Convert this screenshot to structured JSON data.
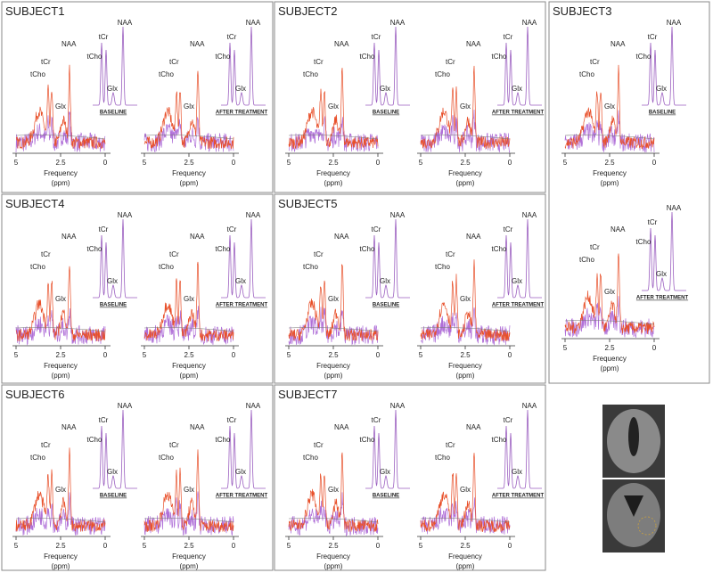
{
  "panels": [
    {
      "title": "SUBJECT1",
      "spectra": [
        {
          "plot_peaks": [
            "tCho",
            "tCr",
            "NAA",
            "Glx"
          ],
          "inset_peaks": [
            "tCr",
            "tCho",
            "NAA",
            "Glx"
          ],
          "inset_label": "BASELINE",
          "xticks": [
            5,
            2.5,
            0
          ],
          "xlabel": "Frequency",
          "xunit": "(ppm)"
        },
        {
          "plot_peaks": [
            "tCho",
            "tCr",
            "NAA",
            "Glx"
          ],
          "inset_peaks": [
            "tCr",
            "tCho",
            "NAA",
            "Glx"
          ],
          "inset_label": "AFTER TREATMENT",
          "xticks": [
            5,
            2.5,
            0
          ],
          "xlabel": "Frequency",
          "xunit": "(ppm)"
        }
      ]
    },
    {
      "title": "SUBJECT2",
      "spectra": [
        {
          "plot_peaks": [
            "tCho",
            "tCr",
            "NAA",
            "Glx"
          ],
          "inset_peaks": [
            "tCr",
            "tCho",
            "NAA",
            "Glx"
          ],
          "inset_label": "BASELINE",
          "xticks": [
            5,
            2.5,
            0
          ],
          "xlabel": "Frequency",
          "xunit": "(ppm)"
        },
        {
          "plot_peaks": [
            "tCho",
            "tCr",
            "NAA",
            "Glx"
          ],
          "inset_peaks": [
            "tCr",
            "tCho",
            "NAA",
            "Glx"
          ],
          "inset_label": "AFTER TREATMENT",
          "xticks": [
            5,
            2.5,
            0
          ],
          "xlabel": "Frequency",
          "xunit": "(ppm)"
        }
      ]
    },
    {
      "title": "SUBJECT3",
      "spectra": [
        {
          "plot_peaks": [
            "tCho",
            "tCr",
            "NAA",
            "Glx"
          ],
          "inset_peaks": [
            "tCr",
            "tCho",
            "NAA",
            "Glx"
          ],
          "inset_label": "BASELINE",
          "xticks": [
            5,
            2.5,
            0
          ],
          "xlabel": "Frequency",
          "xunit": "(ppm)"
        },
        {
          "plot_peaks": [
            "tCho",
            "tCr",
            "NAA",
            "Glx"
          ],
          "inset_peaks": [
            "tCr",
            "tCho",
            "NAA",
            "Glx"
          ],
          "inset_label": "AFTER TREATMENT",
          "xticks": [
            5,
            2.5,
            0
          ],
          "xlabel": "Frequency",
          "xunit": "(ppm)"
        }
      ]
    },
    {
      "title": "SUBJECT4",
      "spectra": [
        {
          "plot_peaks": [
            "tCho",
            "tCr",
            "NAA",
            "Glx"
          ],
          "inset_peaks": [
            "tCr",
            "tCho",
            "NAA",
            "Glx"
          ],
          "inset_label": "BASELINE",
          "xticks": [
            5,
            2.5,
            0
          ],
          "xlabel": "Frequency",
          "xunit": "(ppm)"
        },
        {
          "plot_peaks": [
            "tCho",
            "tCr",
            "NAA",
            "Glx"
          ],
          "inset_peaks": [
            "tCr",
            "tCho",
            "NAA",
            "Glx"
          ],
          "inset_label": "AFTER TREATMENT",
          "xticks": [
            5,
            2.5,
            0
          ],
          "xlabel": "Frequency",
          "xunit": "(ppm)"
        }
      ]
    },
    {
      "title": "SUBJECT5",
      "spectra": [
        {
          "plot_peaks": [
            "tCho",
            "tCr",
            "NAA",
            "Glx"
          ],
          "inset_peaks": [
            "tCr",
            "tCho",
            "NAA",
            "Glx"
          ],
          "inset_label": "BASELINE",
          "xticks": [
            5,
            2.5,
            0
          ],
          "xlabel": "Frequency",
          "xunit": "(ppm)"
        },
        {
          "plot_peaks": [
            "tCho",
            "tCr",
            "NAA",
            "Glx"
          ],
          "inset_peaks": [
            "tCr",
            "tCho",
            "NAA",
            "Glx"
          ],
          "inset_label": "AFTER TREATMENT",
          "xticks": [
            5,
            2.5,
            0
          ],
          "xlabel": "Frequency",
          "xunit": "(ppm)"
        }
      ]
    },
    {
      "title": "SUBJECT6",
      "spectra": [
        {
          "plot_peaks": [
            "tCho",
            "tCr",
            "NAA",
            "Glx"
          ],
          "inset_peaks": [
            "tCr",
            "tCho",
            "NAA",
            "Glx"
          ],
          "inset_label": "BASELINE",
          "xticks": [
            5,
            2.5,
            0
          ],
          "xlabel": "Frequency",
          "xunit": "(ppm)"
        },
        {
          "plot_peaks": [
            "tCho",
            "tCr",
            "NAA",
            "Glx"
          ],
          "inset_peaks": [
            "tCr",
            "tCho",
            "NAA",
            "Glx"
          ],
          "inset_label": "AFTER TREATMENT",
          "xticks": [
            5,
            2.5,
            0
          ],
          "xlabel": "Frequency",
          "xunit": "(ppm)"
        }
      ]
    },
    {
      "title": "SUBJECT7",
      "spectra": [
        {
          "plot_peaks": [
            "tCho",
            "tCr",
            "NAA",
            "Glx"
          ],
          "inset_peaks": [
            "tCr",
            "tCho",
            "NAA",
            "Glx"
          ],
          "inset_label": "BASELINE",
          "xticks": [
            5,
            2.5,
            0
          ],
          "xlabel": "Frequency",
          "xunit": "(ppm)"
        },
        {
          "plot_peaks": [
            "tCho",
            "tCr",
            "NAA",
            "Glx"
          ],
          "inset_peaks": [
            "tCr",
            "tCho",
            "NAA",
            "Glx"
          ],
          "inset_label": "AFTER TREATMENT",
          "xticks": [
            5,
            2.5,
            0
          ],
          "xlabel": "Frequency",
          "xunit": "(ppm)"
        }
      ]
    }
  ]
}
